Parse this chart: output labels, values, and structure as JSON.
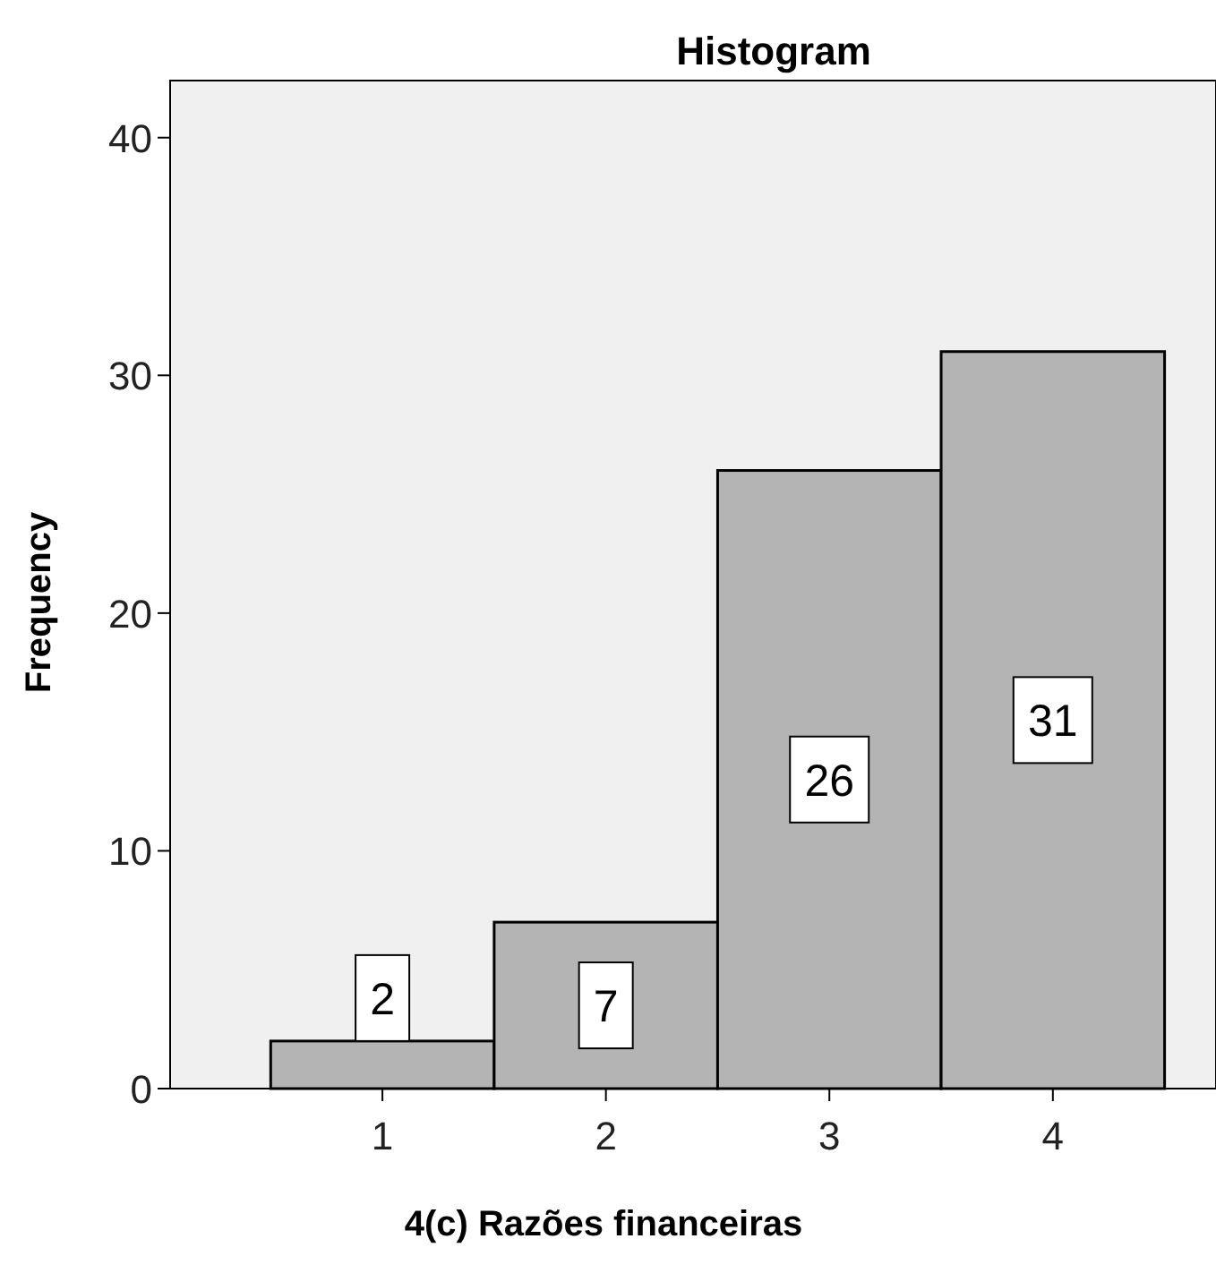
{
  "chart_data": {
    "type": "histogram",
    "title": "Histogram",
    "xlabel": "4(c) Razões financeiras",
    "ylabel": "Frequency",
    "bins": [
      0.5,
      1.5,
      2.5,
      3.5,
      4.5
    ],
    "values": [
      2,
      7,
      26,
      31
    ],
    "color": "#b4b4b4",
    "data_labels": true,
    "grid": false,
    "xlim": [
      0.05,
      4.73
    ],
    "xticks": [
      1,
      2,
      3,
      4
    ],
    "ylim": [
      0,
      42.4
    ],
    "yticks": [
      0,
      10,
      20,
      30,
      40
    ]
  }
}
